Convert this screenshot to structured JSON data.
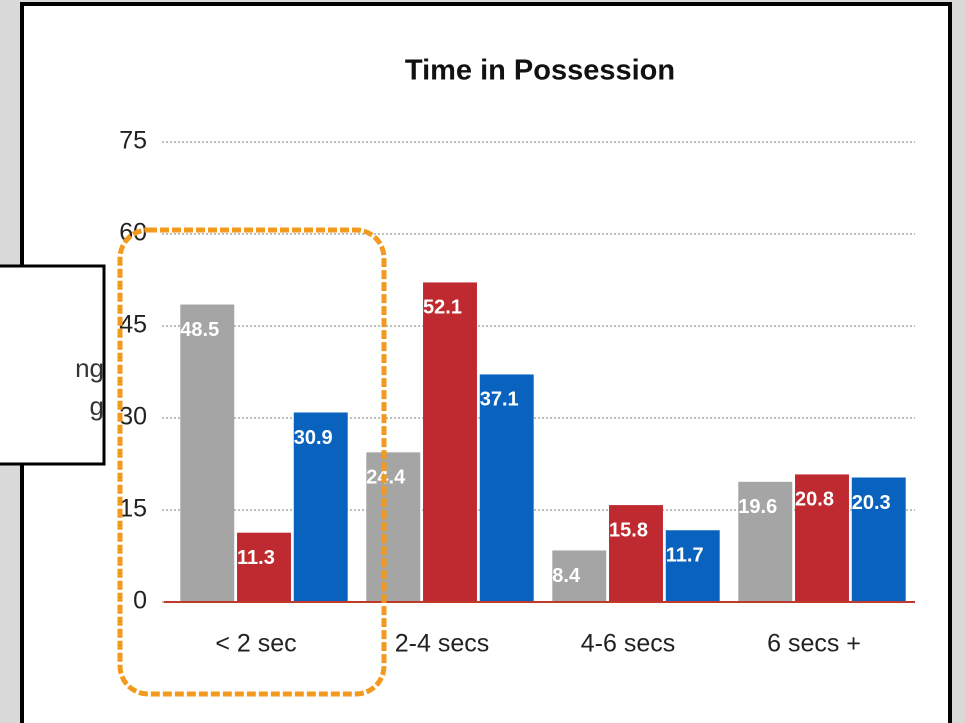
{
  "chart_data": {
    "type": "bar",
    "title": "Time in Possession",
    "ylabel": "%",
    "categories": [
      "< 2 sec",
      "2-4 secs",
      "4-6 secs",
      "6 secs +"
    ],
    "series": [
      {
        "color": "#a5a5a5",
        "values": [
          48.5,
          24.4,
          8.4,
          19.6
        ]
      },
      {
        "color": "#bf2a30",
        "values": [
          11.3,
          52.1,
          15.8,
          20.8
        ]
      },
      {
        "color": "#0a62bf",
        "values": [
          30.9,
          37.1,
          11.7,
          20.3
        ]
      }
    ],
    "ylim": [
      0,
      75
    ],
    "yticks": [
      0,
      15,
      30,
      45,
      60,
      75
    ],
    "grid": true,
    "legend_fragments": [
      "ng",
      "g"
    ]
  }
}
